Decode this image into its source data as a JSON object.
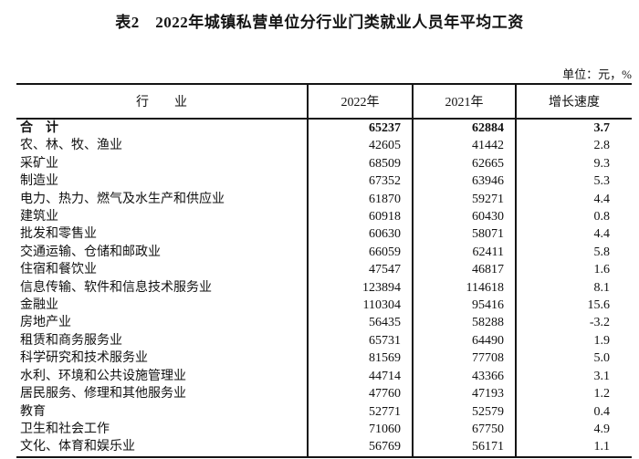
{
  "page": {
    "title": "表2　2022年城镇私营单位分行业门类就业人员年平均工资",
    "unit_note": "单位：元，%"
  },
  "table": {
    "columns": [
      "行　　业",
      "2022年",
      "2021年",
      "增长速度"
    ],
    "rows": [
      {
        "industry": "合　计",
        "y2022": "65237",
        "y2021": "62884",
        "growth": "3.7",
        "is_total": true
      },
      {
        "industry": "农、林、牧、渔业",
        "y2022": "42605",
        "y2021": "41442",
        "growth": "2.8",
        "is_total": false
      },
      {
        "industry": "采矿业",
        "y2022": "68509",
        "y2021": "62665",
        "growth": "9.3",
        "is_total": false
      },
      {
        "industry": "制造业",
        "y2022": "67352",
        "y2021": "63946",
        "growth": "5.3",
        "is_total": false
      },
      {
        "industry": "电力、热力、燃气及水生产和供应业",
        "y2022": "61870",
        "y2021": "59271",
        "growth": "4.4",
        "is_total": false
      },
      {
        "industry": "建筑业",
        "y2022": "60918",
        "y2021": "60430",
        "growth": "0.8",
        "is_total": false
      },
      {
        "industry": "批发和零售业",
        "y2022": "60630",
        "y2021": "58071",
        "growth": "4.4",
        "is_total": false
      },
      {
        "industry": "交通运输、仓储和邮政业",
        "y2022": "66059",
        "y2021": "62411",
        "growth": "5.8",
        "is_total": false
      },
      {
        "industry": "住宿和餐饮业",
        "y2022": "47547",
        "y2021": "46817",
        "growth": "1.6",
        "is_total": false
      },
      {
        "industry": "信息传输、软件和信息技术服务业",
        "y2022": "123894",
        "y2021": "114618",
        "growth": "8.1",
        "is_total": false
      },
      {
        "industry": "金融业",
        "y2022": "110304",
        "y2021": "95416",
        "growth": "15.6",
        "is_total": false
      },
      {
        "industry": "房地产业",
        "y2022": "56435",
        "y2021": "58288",
        "growth": "-3.2",
        "is_total": false
      },
      {
        "industry": "租赁和商务服务业",
        "y2022": "65731",
        "y2021": "64490",
        "growth": "1.9",
        "is_total": false
      },
      {
        "industry": "科学研究和技术服务业",
        "y2022": "81569",
        "y2021": "77708",
        "growth": "5.0",
        "is_total": false
      },
      {
        "industry": "水利、环境和公共设施管理业",
        "y2022": "44714",
        "y2021": "43366",
        "growth": "3.1",
        "is_total": false
      },
      {
        "industry": "居民服务、修理和其他服务业",
        "y2022": "47760",
        "y2021": "47193",
        "growth": "1.2",
        "is_total": false
      },
      {
        "industry": "教育",
        "y2022": "52771",
        "y2021": "52579",
        "growth": "0.4",
        "is_total": false
      },
      {
        "industry": "卫生和社会工作",
        "y2022": "71060",
        "y2021": "67750",
        "growth": "4.9",
        "is_total": false
      },
      {
        "industry": "文化、体育和娱乐业",
        "y2022": "56769",
        "y2021": "56171",
        "growth": "1.1",
        "is_total": false
      }
    ]
  }
}
